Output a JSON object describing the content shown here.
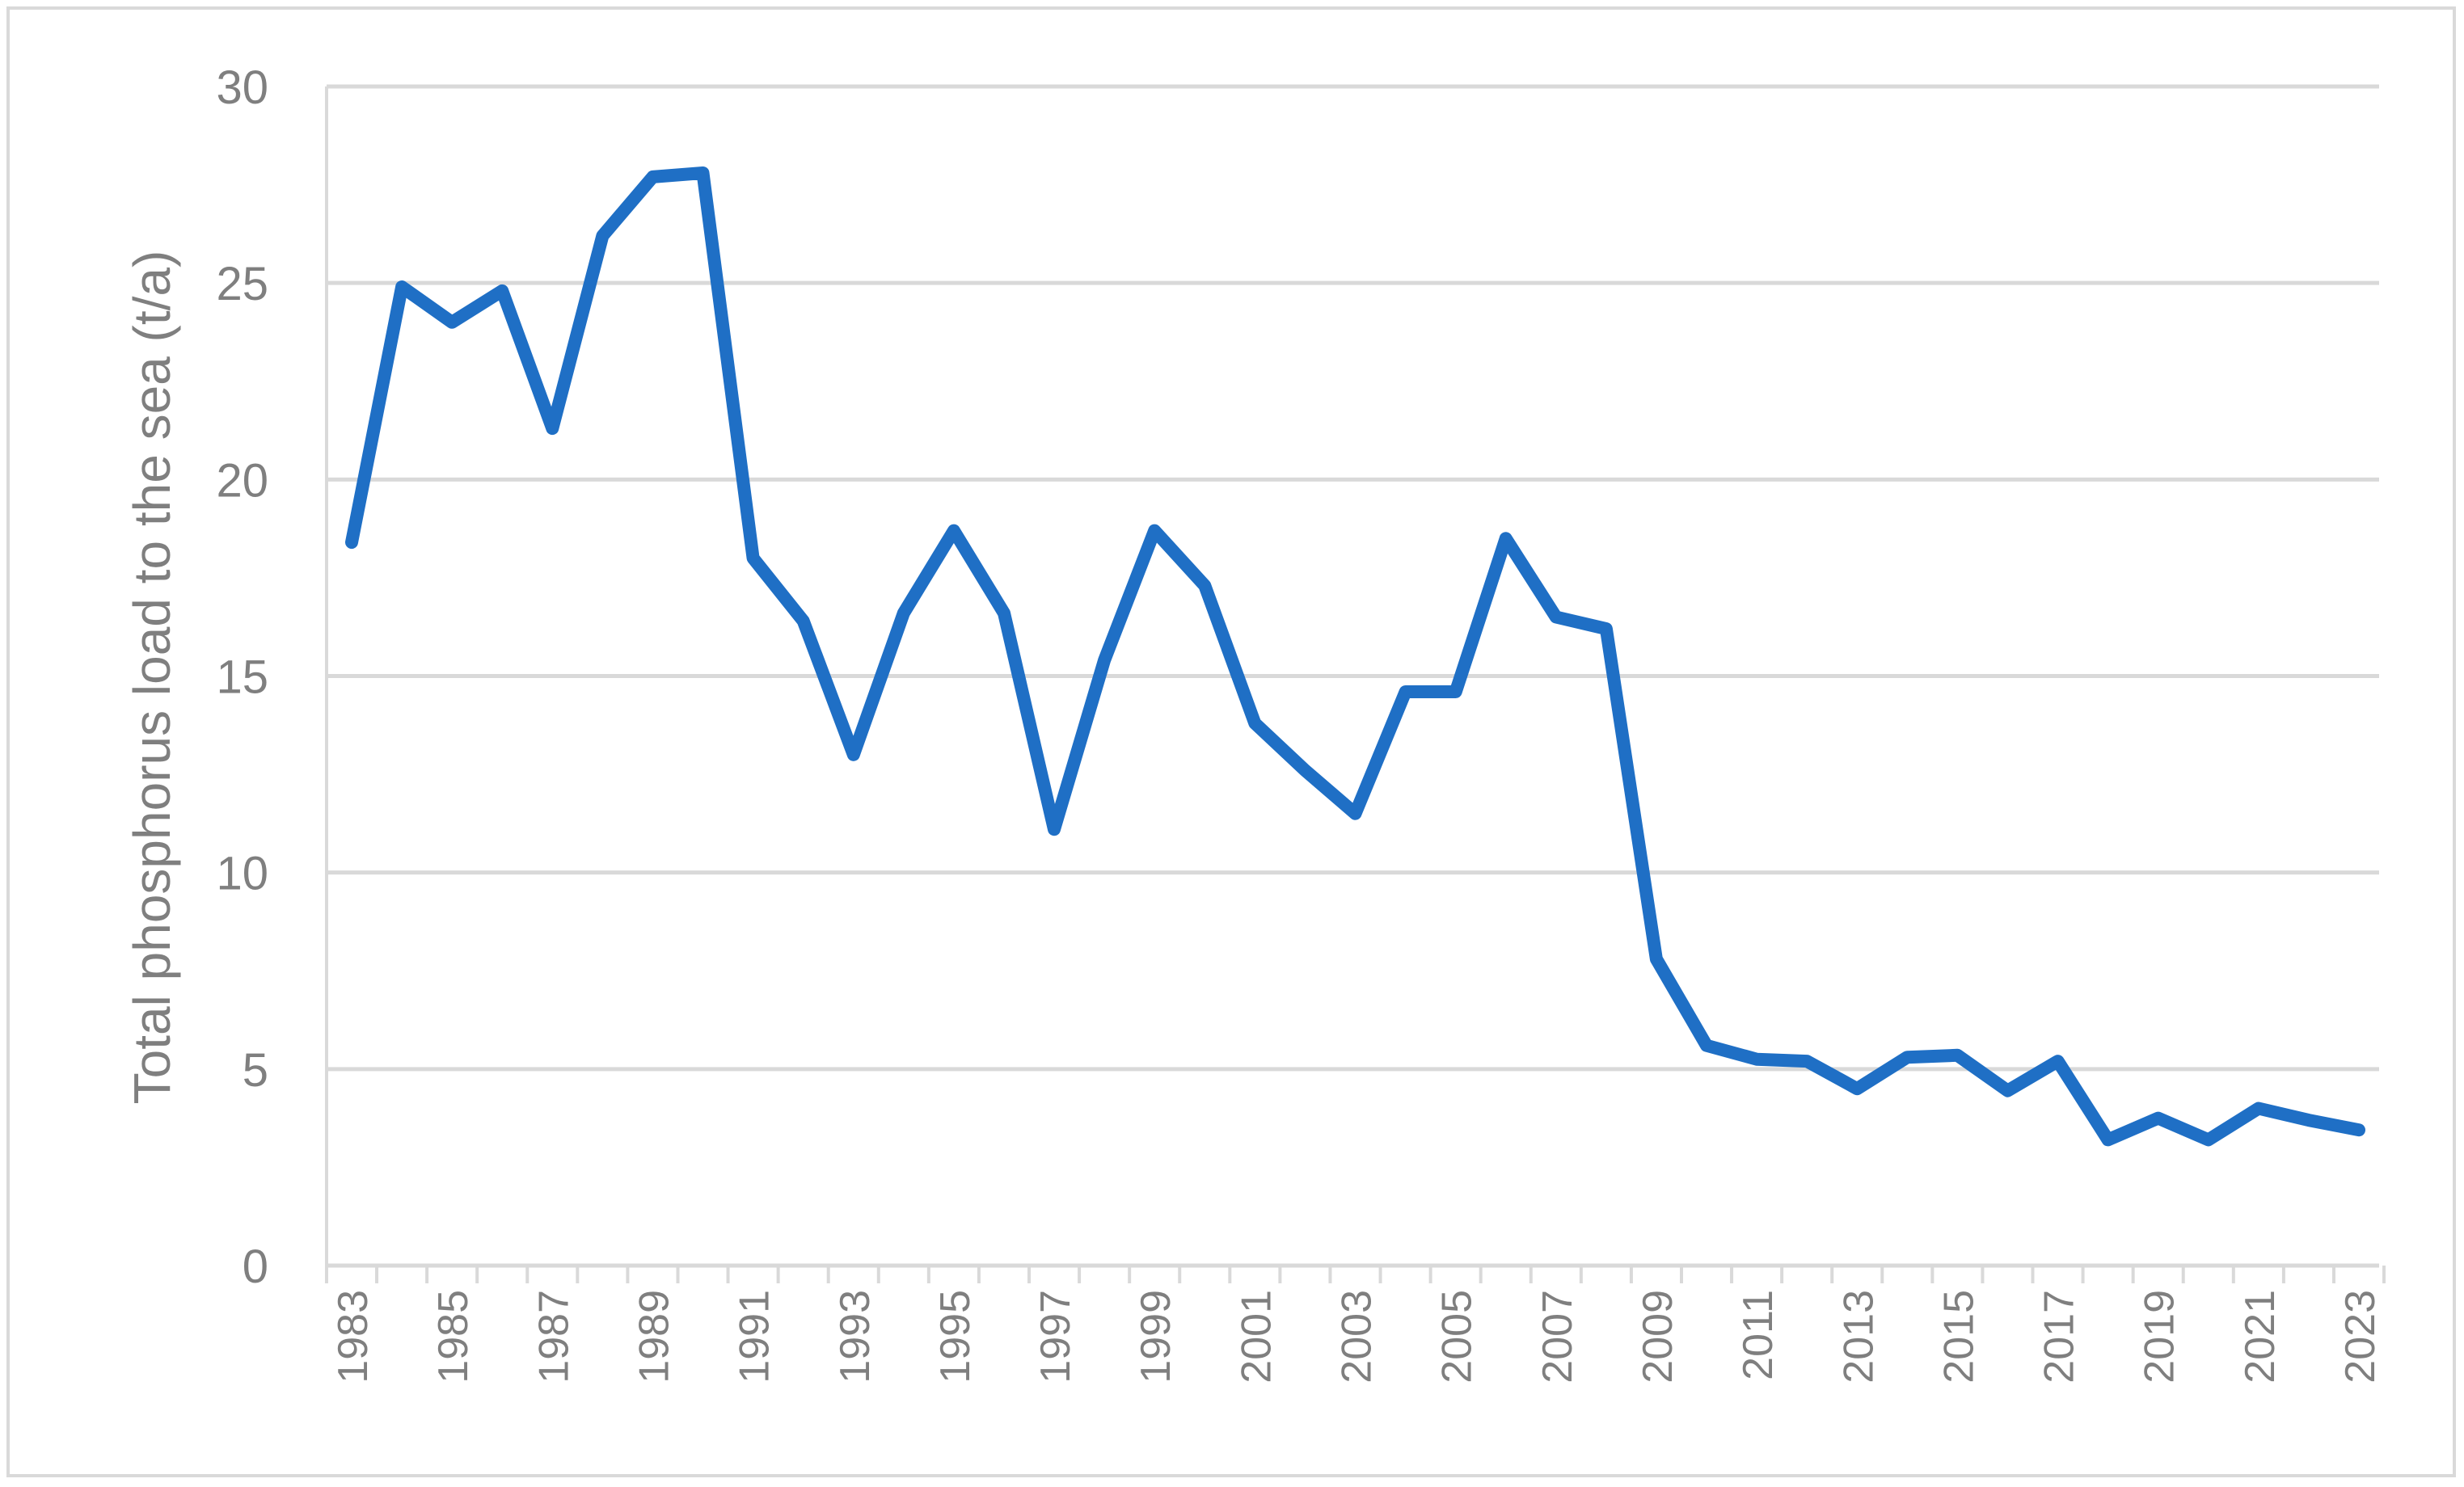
{
  "chart_data": {
    "type": "line",
    "title": "",
    "xlabel": "",
    "ylabel": "Total phosphorus load to the sea (t/a)",
    "ylim": [
      0,
      30
    ],
    "yticks": [
      0,
      5,
      10,
      15,
      20,
      25,
      30
    ],
    "x": [
      1983,
      1984,
      1985,
      1986,
      1987,
      1988,
      1989,
      1990,
      1991,
      1992,
      1993,
      1994,
      1995,
      1996,
      1997,
      1998,
      1999,
      2000,
      2001,
      2002,
      2003,
      2004,
      2005,
      2006,
      2007,
      2008,
      2009,
      2010,
      2011,
      2012,
      2013,
      2014,
      2015,
      2016,
      2017,
      2018,
      2019,
      2020,
      2021,
      2022,
      2023
    ],
    "xtick_labels": [
      "1983",
      "1985",
      "1987",
      "1989",
      "1991",
      "1993",
      "1995",
      "1997",
      "1999",
      "2001",
      "2003",
      "2005",
      "2007",
      "2009",
      "2011",
      "2013",
      "2015",
      "2017",
      "2019",
      "2021",
      "2023"
    ],
    "series": [
      {
        "values": [
          18.4,
          24.9,
          24.0,
          24.8,
          21.3,
          26.2,
          27.7,
          27.8,
          18.0,
          16.4,
          13.0,
          16.6,
          18.7,
          16.6,
          11.1,
          15.4,
          18.7,
          17.3,
          13.8,
          12.6,
          11.5,
          14.6,
          14.6,
          18.5,
          16.5,
          16.2,
          7.8,
          5.6,
          5.25,
          5.2,
          4.5,
          5.3,
          5.35,
          4.45,
          5.2,
          3.2,
          3.75,
          3.2,
          4.0,
          3.7,
          3.45
        ],
        "color": "#1f6fc5"
      }
    ],
    "grid": true,
    "legend": "none"
  }
}
